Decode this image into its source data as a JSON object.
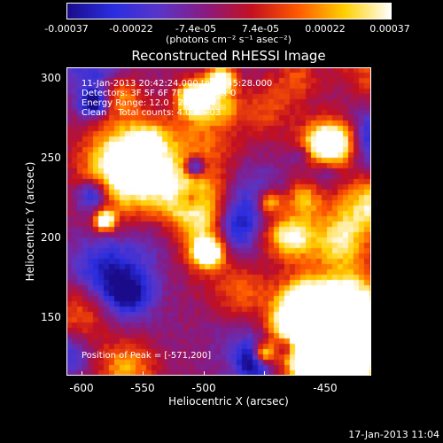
{
  "colorbar": {
    "labels": [
      "-0.00037",
      "-0.00022",
      "-7.4e-05",
      "7.4e-05",
      "0.00022",
      "0.00037"
    ],
    "units": "(photons cm⁻² s⁻¹ asec⁻²)",
    "colors": [
      "#1a0b8a",
      "#2a2ee0",
      "#5a35c8",
      "#8a1a80",
      "#c41020",
      "#ff5a00",
      "#ffd000",
      "#ffffff"
    ]
  },
  "title": "Reconstructed RHESSI Image",
  "annotations": {
    "time_range": "11-Jan-2013 20:42:24.000 to 20:45:28.000",
    "detectors": "Detectors: 3F 5F 6F 7F 8F 9F, Att 0",
    "energy": "Energy Range: 12.0 - 25.0 keV",
    "clean": "Clean    Total counts: 4.03E+03",
    "peak": "Position of Peak = [-571,200]"
  },
  "axes": {
    "xlabel": "Heliocentric X (arcsec)",
    "ylabel": "Heliocentric Y (arcsec)",
    "xticks": [
      "-600",
      "-550",
      "-500",
      "-450"
    ],
    "yticks": [
      "300",
      "250",
      "200",
      "150"
    ]
  },
  "timestamp": "17-Jan-2013 11:04"
}
